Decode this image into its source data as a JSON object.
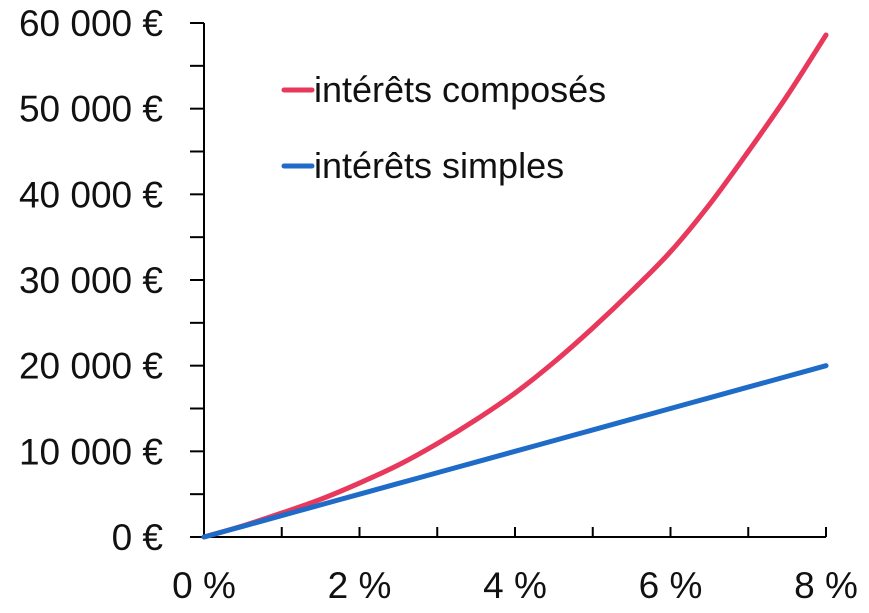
{
  "chart_data": {
    "type": "line",
    "title": "",
    "xlabel": "",
    "ylabel": "",
    "x": [
      0,
      0.5,
      1,
      1.5,
      2,
      2.5,
      3,
      3.5,
      4,
      4.5,
      5,
      5.5,
      6,
      6.5,
      7,
      7.5,
      8
    ],
    "xlim": [
      0,
      8
    ],
    "ylim": [
      0,
      60000
    ],
    "x_ticks": [
      0,
      1,
      2,
      3,
      4,
      5,
      6,
      7,
      8
    ],
    "x_tick_labels": [
      {
        "value": 0,
        "label": "0 %"
      },
      {
        "value": 2,
        "label": "2 %"
      },
      {
        "value": 4,
        "label": "4 %"
      },
      {
        "value": 6,
        "label": "6 %"
      },
      {
        "value": 8,
        "label": "8 %"
      }
    ],
    "y_ticks": [
      0,
      5000,
      10000,
      15000,
      20000,
      25000,
      30000,
      35000,
      40000,
      45000,
      50000,
      55000,
      60000
    ],
    "y_tick_labels": [
      {
        "value": 0,
        "label": "0 €"
      },
      {
        "value": 10000,
        "label": "10 000 €"
      },
      {
        "value": 20000,
        "label": "20 000 €"
      },
      {
        "value": 30000,
        "label": "30 000 €"
      },
      {
        "value": 40000,
        "label": "40 000 €"
      },
      {
        "value": 50000,
        "label": "50 000 €"
      },
      {
        "value": 60000,
        "label": "60 000 €"
      }
    ],
    "series": [
      {
        "name": "intérêts composés",
        "color": "#e8385b",
        "values": [
          0,
          1300,
          2800,
          4400,
          6300,
          8400,
          10900,
          13700,
          16800,
          20400,
          24400,
          28700,
          33300,
          38800,
          45000,
          51500,
          58600
        ]
      },
      {
        "name": "intérêts simples",
        "color": "#1f6bc8",
        "values": [
          0,
          1250,
          2500,
          3750,
          5000,
          6250,
          7500,
          8750,
          10000,
          11250,
          12500,
          13750,
          15000,
          16250,
          17500,
          18750,
          20000
        ]
      }
    ],
    "grid": false,
    "legend_position": "top-left"
  }
}
